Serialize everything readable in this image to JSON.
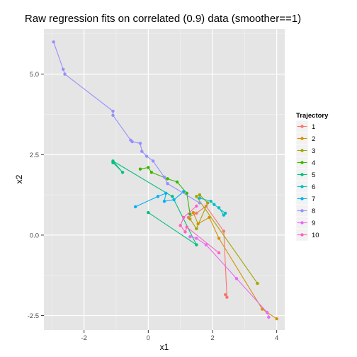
{
  "chart_data": {
    "type": "line",
    "title": "Raw regression fits on correlated (0.9) data (smoother==1)",
    "xlabel": "x1",
    "ylabel": "x2",
    "xlim": [
      -3.25,
      4.25
    ],
    "ylim": [
      -2.95,
      6.4
    ],
    "x_ticks": [
      -2,
      0,
      2,
      4
    ],
    "y_ticks": [
      -2.5,
      0.0,
      2.5,
      5.0
    ],
    "x_tick_labels": [
      "-2",
      "0",
      "2",
      "4"
    ],
    "y_tick_labels": [
      "-2.5",
      "0.0",
      "2.5",
      "5.0"
    ],
    "grid": true,
    "background": "#e5e5e5",
    "legend": {
      "title": "Trajectory",
      "position": "right"
    },
    "series": [
      {
        "name": "1",
        "color": "#F8766D",
        "points": [
          [
            2.4,
            -1.85
          ],
          [
            2.45,
            -1.93
          ],
          [
            2.35,
            0.12
          ],
          [
            1.8,
            0.9
          ],
          [
            1.5,
            0.68
          ],
          [
            1.25,
            0.55
          ]
        ]
      },
      {
        "name": "2",
        "color": "#D89000",
        "points": [
          [
            4.0,
            -2.6
          ],
          [
            3.55,
            -2.3
          ],
          [
            2.2,
            -0.1
          ],
          [
            1.9,
            0.55
          ],
          [
            1.55,
            0.35
          ],
          [
            1.4,
            0.7
          ]
        ]
      },
      {
        "name": "3",
        "color": "#A3A500",
        "points": [
          [
            3.4,
            -1.5
          ],
          [
            1.5,
            1.2
          ],
          [
            1.6,
            1.25
          ],
          [
            1.85,
            1.0
          ],
          [
            1.5,
            0.2
          ],
          [
            1.3,
            0.5
          ]
        ]
      },
      {
        "name": "4",
        "color": "#39B600",
        "points": [
          [
            -0.25,
            2.05
          ],
          [
            0.0,
            2.1
          ],
          [
            0.1,
            1.95
          ],
          [
            0.6,
            1.75
          ],
          [
            0.9,
            1.65
          ],
          [
            1.2,
            1.3
          ],
          [
            1.3,
            0.65
          ]
        ]
      },
      {
        "name": "5",
        "color": "#00BF7D",
        "points": [
          [
            0.0,
            0.7
          ],
          [
            1.5,
            -0.3
          ],
          [
            0.75,
            1.2
          ],
          [
            -1.1,
            2.3
          ],
          [
            -0.8,
            1.95
          ],
          [
            -1.1,
            2.25
          ]
        ]
      },
      {
        "name": "6",
        "color": "#00BFC4",
        "points": [
          [
            2.2,
            0.85
          ],
          [
            2.35,
            0.62
          ],
          [
            2.4,
            0.68
          ],
          [
            2.05,
            0.95
          ],
          [
            1.95,
            1.05
          ],
          [
            1.6,
            1.15
          ]
        ]
      },
      {
        "name": "7",
        "color": "#00B0F6",
        "points": [
          [
            -0.4,
            0.88
          ],
          [
            0.3,
            1.2
          ],
          [
            0.55,
            1.3
          ],
          [
            0.5,
            1.05
          ],
          [
            0.8,
            1.1
          ],
          [
            1.1,
            1.35
          ]
        ]
      },
      {
        "name": "8",
        "color": "#9590FF",
        "points": [
          [
            -2.95,
            6.0
          ],
          [
            -2.65,
            5.15
          ],
          [
            -2.6,
            5.0
          ],
          [
            -1.1,
            3.85
          ],
          [
            -1.1,
            3.72
          ],
          [
            -0.55,
            2.95
          ],
          [
            -0.5,
            2.9
          ],
          [
            -0.25,
            2.85
          ],
          [
            -0.2,
            2.6
          ],
          [
            -0.05,
            2.45
          ],
          [
            0.15,
            2.3
          ],
          [
            0.5,
            1.8
          ],
          [
            0.6,
            1.6
          ],
          [
            1.6,
            1.0
          ]
        ]
      },
      {
        "name": "9",
        "color": "#E76BF3",
        "points": [
          [
            3.75,
            -2.55
          ],
          [
            3.7,
            -2.4
          ],
          [
            2.75,
            -1.35
          ],
          [
            1.8,
            -0.3
          ],
          [
            1.5,
            -0.1
          ],
          [
            1.3,
            -0.05
          ]
        ]
      },
      {
        "name": "10",
        "color": "#FF62BC",
        "points": [
          [
            2.2,
            -0.55
          ],
          [
            1.2,
            0.25
          ],
          [
            1.15,
            0.1
          ],
          [
            1.0,
            0.3
          ],
          [
            1.1,
            0.55
          ],
          [
            1.5,
            0.9
          ]
        ]
      }
    ]
  }
}
